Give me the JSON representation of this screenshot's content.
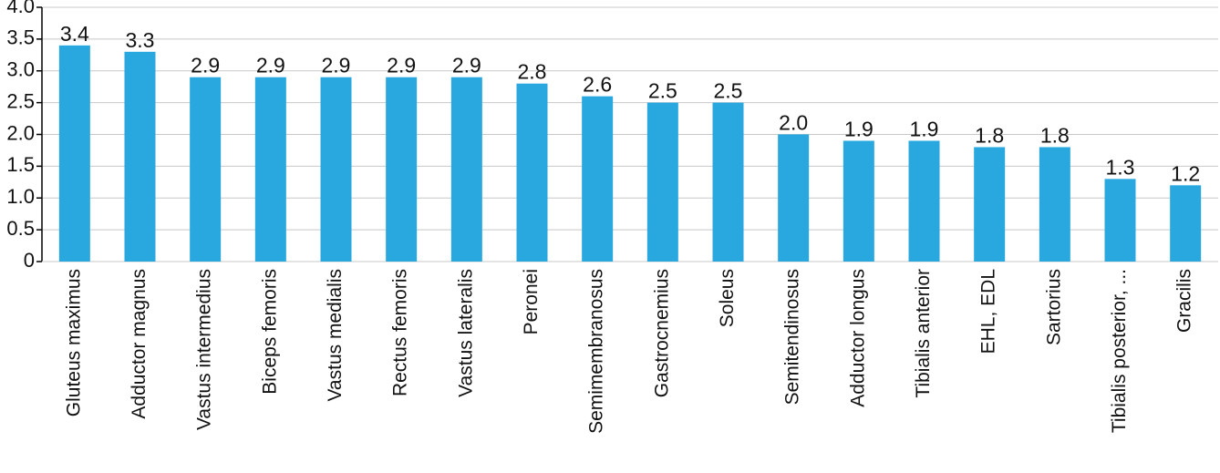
{
  "chart_data": {
    "type": "bar",
    "categories": [
      "Gluteus maximus",
      "Adductor magnus",
      "Vastus intermedius",
      "Biceps femoris",
      "Vastus medialis",
      "Rectus femoris",
      "Vastus lateralis",
      "Peronei",
      "Semimembranosus",
      "Gastrocnemius",
      "Soleus",
      "Semitendinosus",
      "Adductor longus",
      "Tibialis anterior",
      "EHL, EDL",
      "Sartorius",
      "Tibialis posterior, ...",
      "Gracilis"
    ],
    "values": [
      3.4,
      3.3,
      2.9,
      2.9,
      2.9,
      2.9,
      2.9,
      2.8,
      2.6,
      2.5,
      2.5,
      2.0,
      1.9,
      1.9,
      1.8,
      1.8,
      1.3,
      1.2
    ],
    "value_labels": [
      "3.4",
      "3.3",
      "2.9",
      "2.9",
      "2.9",
      "2.9",
      "2.9",
      "2.8",
      "2.6",
      "2.5",
      "2.5",
      "2.0",
      "1.9",
      "1.9",
      "1.8",
      "1.8",
      "1.3",
      "1.2"
    ],
    "color": "#29a8e0",
    "ylim": [
      0,
      4
    ],
    "yticks": [
      0,
      0.5,
      {
        "value": 1,
        "label": "1.0"
      },
      1.5,
      {
        "value": 2,
        "label": "2.0"
      },
      2.5,
      {
        "value": 3,
        "label": "3.0"
      },
      3.5,
      {
        "value": 4,
        "label": "4.0"
      }
    ],
    "grid": true
  }
}
